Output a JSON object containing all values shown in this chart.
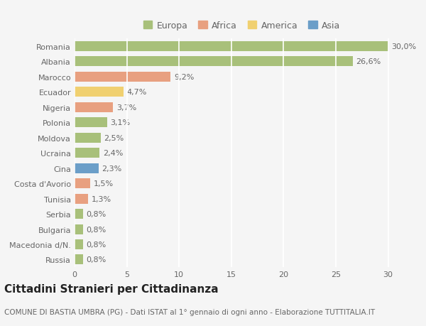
{
  "categories": [
    "Romania",
    "Albania",
    "Marocco",
    "Ecuador",
    "Nigeria",
    "Polonia",
    "Moldova",
    "Ucraina",
    "Cina",
    "Costa d'Avorio",
    "Tunisia",
    "Serbia",
    "Bulgaria",
    "Macedonia d/N.",
    "Russia"
  ],
  "values": [
    30.0,
    26.6,
    9.2,
    4.7,
    3.7,
    3.1,
    2.5,
    2.4,
    2.3,
    1.5,
    1.3,
    0.8,
    0.8,
    0.8,
    0.8
  ],
  "labels": [
    "30,0%",
    "26,6%",
    "9,2%",
    "4,7%",
    "3,7%",
    "3,1%",
    "2,5%",
    "2,4%",
    "2,3%",
    "1,5%",
    "1,3%",
    "0,8%",
    "0,8%",
    "0,8%",
    "0,8%"
  ],
  "continents": [
    "Europa",
    "Europa",
    "Africa",
    "America",
    "Africa",
    "Europa",
    "Europa",
    "Europa",
    "Asia",
    "Africa",
    "Africa",
    "Europa",
    "Europa",
    "Europa",
    "Europa"
  ],
  "colors": {
    "Europa": "#a8c07a",
    "Africa": "#e8a080",
    "America": "#f0d070",
    "Asia": "#6b9ec8"
  },
  "legend_order": [
    "Europa",
    "Africa",
    "America",
    "Asia"
  ],
  "xlim": [
    0,
    32
  ],
  "xticks": [
    0,
    5,
    10,
    15,
    20,
    25,
    30
  ],
  "background_color": "#f5f5f5",
  "grid_color": "#ffffff",
  "title": "Cittadini Stranieri per Cittadinanza",
  "subtitle": "COMUNE DI BASTIA UMBRA (PG) - Dati ISTAT al 1° gennaio di ogni anno - Elaborazione TUTTITALIA.IT",
  "bar_height": 0.65,
  "label_fontsize": 8,
  "tick_fontsize": 8,
  "title_fontsize": 11,
  "subtitle_fontsize": 7.5
}
